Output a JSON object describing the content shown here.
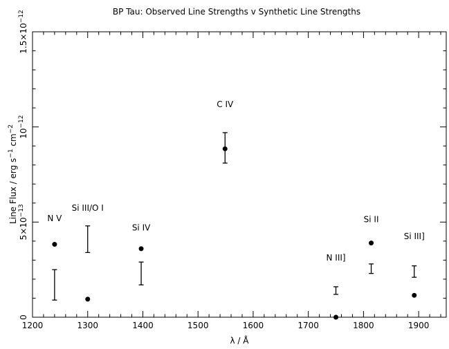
{
  "chart_data": {
    "type": "scatter",
    "title": "BP Tau: Observed Line Strengths v Synthetic Line Strengths",
    "xlabel": "λ / Å",
    "ylabel_parts": {
      "base": "Line Flux / erg s",
      "exp1": "−1",
      "mid": " cm",
      "exp2": "−2"
    },
    "xlim": [
      1200,
      1950
    ],
    "ylim": [
      0,
      1.5e-12
    ],
    "x_ticks": [
      {
        "value": 1200,
        "label": "1200"
      },
      {
        "value": 1300,
        "label": "1300"
      },
      {
        "value": 1400,
        "label": "1400"
      },
      {
        "value": 1500,
        "label": "1500"
      },
      {
        "value": 1600,
        "label": "1600"
      },
      {
        "value": 1700,
        "label": "1700"
      },
      {
        "value": 1800,
        "label": "1800"
      },
      {
        "value": 1900,
        "label": "1900"
      }
    ],
    "y_ticks": [
      {
        "value": 0,
        "mant": "0",
        "exp": ""
      },
      {
        "value": 5e-13,
        "mant": "5×10",
        "exp": "−13"
      },
      {
        "value": 1e-12,
        "mant": "10",
        "exp": "−12"
      },
      {
        "value": 1.5e-12,
        "mant": "1.5×10",
        "exp": "−12"
      }
    ],
    "observed_points": [
      {
        "line": "N V",
        "x": 1240,
        "y": 3.83e-13
      },
      {
        "line": "Si III/O I",
        "x": 1300,
        "y": 9.5e-14
      },
      {
        "line": "Si IV",
        "x": 1397,
        "y": 3.6e-13
      },
      {
        "line": "C IV",
        "x": 1549,
        "y": 8.85e-13
      },
      {
        "line": "N III]",
        "x": 1750,
        "y": 0
      },
      {
        "line": "Si II",
        "x": 1814,
        "y": 3.9e-13
      },
      {
        "line": "Si III]",
        "x": 1892,
        "y": 1.15e-13
      }
    ],
    "synthetic_ranges": [
      {
        "line": "N V",
        "x": 1240,
        "low": 9e-14,
        "high": 2.5e-13
      },
      {
        "line": "Si III/O I",
        "x": 1300,
        "low": 3.4e-13,
        "high": 4.8e-13
      },
      {
        "line": "Si IV",
        "x": 1397,
        "low": 1.7e-13,
        "high": 2.9e-13
      },
      {
        "line": "C IV",
        "x": 1549,
        "low": 8.1e-13,
        "high": 9.7e-13
      },
      {
        "line": "N III]",
        "x": 1750,
        "low": 1.2e-13,
        "high": 1.6e-13
      },
      {
        "line": "Si II",
        "x": 1814,
        "low": 2.3e-13,
        "high": 2.8e-13
      },
      {
        "line": "Si III]",
        "x": 1892,
        "low": 2.1e-13,
        "high": 2.7e-13
      }
    ],
    "annotations": [
      {
        "text": "N V",
        "x": 1240,
        "y": 5.05e-13
      },
      {
        "text": "Si III/O I",
        "x": 1300,
        "y": 5.6e-13
      },
      {
        "text": "Si IV",
        "x": 1397,
        "y": 4.55e-13
      },
      {
        "text": "C IV",
        "x": 1549,
        "y": 1.105e-12
      },
      {
        "text": "N III]",
        "x": 1750,
        "y": 2.97e-13
      },
      {
        "text": "Si II",
        "x": 1814,
        "y": 5e-13
      },
      {
        "text": "Si III]",
        "x": 1892,
        "y": 4.1e-13
      }
    ],
    "grid": false,
    "legend": "none"
  }
}
